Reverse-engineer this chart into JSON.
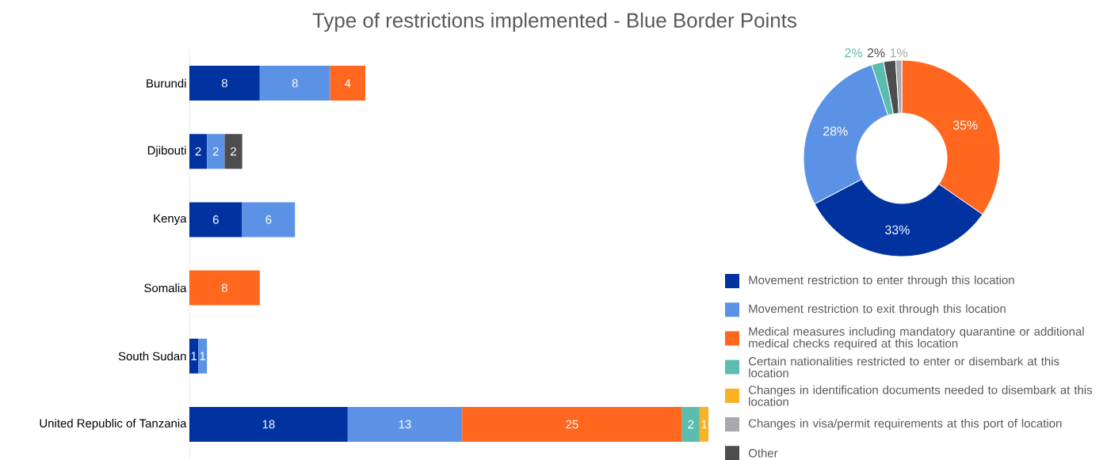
{
  "chart_data": [
    {
      "type": "bar",
      "title": "Type of restrictions implemented - Blue Border Points",
      "orientation": "horizontal",
      "stacked": true,
      "data_labels": true,
      "legend": "right",
      "categories": [
        "Burundi",
        "Djibouti",
        "Kenya",
        "Somalia",
        "South Sudan",
        "United Republic of Tanzania"
      ],
      "series": [
        {
          "name": "Movement restriction to enter through this location",
          "color": "#0033a0",
          "values": [
            8,
            2,
            6,
            null,
            1,
            18
          ]
        },
        {
          "name": "Movement restriction to exit through this location",
          "color": "#5b92e5",
          "values": [
            8,
            2,
            6,
            null,
            1,
            13
          ]
        },
        {
          "name": "Medical measures including mandatory quarantine or additional medical checks required at this location",
          "color": "#ff671f",
          "values": [
            4,
            null,
            null,
            8,
            null,
            25
          ]
        },
        {
          "name": "Certain nationalities restricted to enter or disembark at this location",
          "color": "#5bbcb0",
          "values": [
            null,
            null,
            null,
            null,
            null,
            2
          ]
        },
        {
          "name": "Changes in identification documents needed to disembark at this location",
          "color": "#f9b223",
          "values": [
            null,
            null,
            null,
            null,
            null,
            1
          ]
        },
        {
          "name": "Changes in visa/permit requirements at this port of location",
          "color": "#a7a9ac",
          "values": [
            null,
            null,
            null,
            null,
            null,
            null
          ]
        },
        {
          "name": "Other",
          "color": "#4d4d4f",
          "values": [
            null,
            2,
            null,
            null,
            null,
            null
          ]
        }
      ]
    },
    {
      "type": "donut",
      "categories": [
        null,
        null,
        null,
        null,
        null,
        null
      ],
      "values": [
        35,
        33,
        28,
        2,
        2,
        1
      ],
      "colors": [
        "#ff671f",
        "#0033a0",
        "#5b92e5",
        "#5bbcb0",
        "#4d4d4f",
        "#a7a9ac"
      ],
      "value_labels": [
        "35%",
        "33%",
        "28%",
        "2%",
        "2%",
        "1%"
      ]
    }
  ]
}
